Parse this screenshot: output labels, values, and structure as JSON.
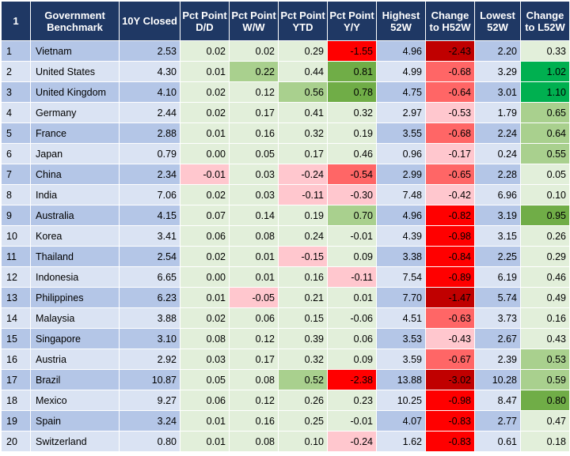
{
  "header": [
    "1",
    "Government Benchmark",
    "10Y Closed",
    "Pct Point D/D",
    "Pct Point W/W",
    "Pct Point YTD",
    "Pct Point Y/Y",
    "Highest 52W",
    "Change to H52W",
    "Lowest 52W",
    "Change to L52W"
  ],
  "rows": [
    {
      "rank": "1",
      "name": "Vietnam",
      "closed": "2.53",
      "dd": "0.02",
      "ww": "0.02",
      "ytd": "0.29",
      "yy": "-1.55",
      "high": "4.96",
      "chh": "-2.43",
      "low": "2.20",
      "chl": "0.33"
    },
    {
      "rank": "2",
      "name": "United States",
      "closed": "4.30",
      "dd": "0.01",
      "ww": "0.22",
      "ytd": "0.44",
      "yy": "0.81",
      "high": "4.99",
      "chh": "-0.68",
      "low": "3.29",
      "chl": "1.02"
    },
    {
      "rank": "3",
      "name": "United Kingdom",
      "closed": "4.10",
      "dd": "0.02",
      "ww": "0.12",
      "ytd": "0.56",
      "yy": "0.78",
      "high": "4.75",
      "chh": "-0.64",
      "low": "3.01",
      "chl": "1.10"
    },
    {
      "rank": "4",
      "name": "Germany",
      "closed": "2.44",
      "dd": "0.02",
      "ww": "0.17",
      "ytd": "0.41",
      "yy": "0.32",
      "high": "2.97",
      "chh": "-0.53",
      "low": "1.79",
      "chl": "0.65"
    },
    {
      "rank": "5",
      "name": "France",
      "closed": "2.88",
      "dd": "0.01",
      "ww": "0.16",
      "ytd": "0.32",
      "yy": "0.19",
      "high": "3.55",
      "chh": "-0.68",
      "low": "2.24",
      "chl": "0.64"
    },
    {
      "rank": "6",
      "name": "Japan",
      "closed": "0.79",
      "dd": "0.00",
      "ww": "0.05",
      "ytd": "0.17",
      "yy": "0.46",
      "high": "0.96",
      "chh": "-0.17",
      "low": "0.24",
      "chl": "0.55"
    },
    {
      "rank": "7",
      "name": "China",
      "closed": "2.34",
      "dd": "-0.01",
      "ww": "0.03",
      "ytd": "-0.24",
      "yy": "-0.54",
      "high": "2.99",
      "chh": "-0.65",
      "low": "2.28",
      "chl": "0.05"
    },
    {
      "rank": "8",
      "name": "India",
      "closed": "7.06",
      "dd": "0.02",
      "ww": "0.03",
      "ytd": "-0.11",
      "yy": "-0.30",
      "high": "7.48",
      "chh": "-0.42",
      "low": "6.96",
      "chl": "0.10"
    },
    {
      "rank": "9",
      "name": "Australia",
      "closed": "4.15",
      "dd": "0.07",
      "ww": "0.14",
      "ytd": "0.19",
      "yy": "0.70",
      "high": "4.96",
      "chh": "-0.82",
      "low": "3.19",
      "chl": "0.95"
    },
    {
      "rank": "10",
      "name": "Korea",
      "closed": "3.41",
      "dd": "0.06",
      "ww": "0.08",
      "ytd": "0.24",
      "yy": "-0.01",
      "high": "4.39",
      "chh": "-0.98",
      "low": "3.15",
      "chl": "0.26"
    },
    {
      "rank": "11",
      "name": "Thailand",
      "closed": "2.54",
      "dd": "0.02",
      "ww": "0.01",
      "ytd": "-0.15",
      "yy": "0.09",
      "high": "3.38",
      "chh": "-0.84",
      "low": "2.25",
      "chl": "0.29"
    },
    {
      "rank": "12",
      "name": "Indonesia",
      "closed": "6.65",
      "dd": "0.00",
      "ww": "0.01",
      "ytd": "0.16",
      "yy": "-0.11",
      "high": "7.54",
      "chh": "-0.89",
      "low": "6.19",
      "chl": "0.46"
    },
    {
      "rank": "13",
      "name": "Philippines",
      "closed": "6.23",
      "dd": "0.01",
      "ww": "-0.05",
      "ytd": "0.21",
      "yy": "0.01",
      "high": "7.70",
      "chh": "-1.47",
      "low": "5.74",
      "chl": "0.49"
    },
    {
      "rank": "14",
      "name": "Malaysia",
      "closed": "3.88",
      "dd": "0.02",
      "ww": "0.06",
      "ytd": "0.15",
      "yy": "-0.06",
      "high": "4.51",
      "chh": "-0.63",
      "low": "3.73",
      "chl": "0.16"
    },
    {
      "rank": "15",
      "name": "Singapore",
      "closed": "3.10",
      "dd": "0.08",
      "ww": "0.12",
      "ytd": "0.39",
      "yy": "0.06",
      "high": "3.53",
      "chh": "-0.43",
      "low": "2.67",
      "chl": "0.43"
    },
    {
      "rank": "16",
      "name": "Austria",
      "closed": "2.92",
      "dd": "0.03",
      "ww": "0.17",
      "ytd": "0.32",
      "yy": "0.09",
      "high": "3.59",
      "chh": "-0.67",
      "low": "2.39",
      "chl": "0.53"
    },
    {
      "rank": "17",
      "name": "Brazil",
      "closed": "10.87",
      "dd": "0.05",
      "ww": "0.08",
      "ytd": "0.52",
      "yy": "-2.38",
      "high": "13.88",
      "chh": "-3.02",
      "low": "10.28",
      "chl": "0.59"
    },
    {
      "rank": "18",
      "name": "Mexico",
      "closed": "9.27",
      "dd": "0.06",
      "ww": "0.12",
      "ytd": "0.26",
      "yy": "0.23",
      "high": "10.25",
      "chh": "-0.98",
      "low": "8.47",
      "chl": "0.80"
    },
    {
      "rank": "19",
      "name": "Spain",
      "closed": "3.24",
      "dd": "0.01",
      "ww": "0.16",
      "ytd": "0.25",
      "yy": "-0.01",
      "high": "4.07",
      "chh": "-0.83",
      "low": "2.77",
      "chl": "0.47"
    },
    {
      "rank": "20",
      "name": "Switzerland",
      "closed": "0.80",
      "dd": "0.01",
      "ww": "0.08",
      "ytd": "0.10",
      "yy": "-0.24",
      "high": "1.62",
      "chh": "-0.83",
      "low": "0.61",
      "chl": "0.18"
    }
  ],
  "colors": {
    "header_bg": "#1f3864",
    "row_odd": "#b4c6e7",
    "row_even": "#dae3f3",
    "cell_default": "#e2efda",
    "neg_light": "#ffc7ce",
    "neg_mid": "#ff6666",
    "neg_strong": "#ff0000",
    "neg_darkest": "#c00000",
    "pos_light": "#c6e0b4",
    "pos_mid": "#a9d08e",
    "pos_strong": "#70ad47",
    "pos_darkest": "#00b050"
  }
}
